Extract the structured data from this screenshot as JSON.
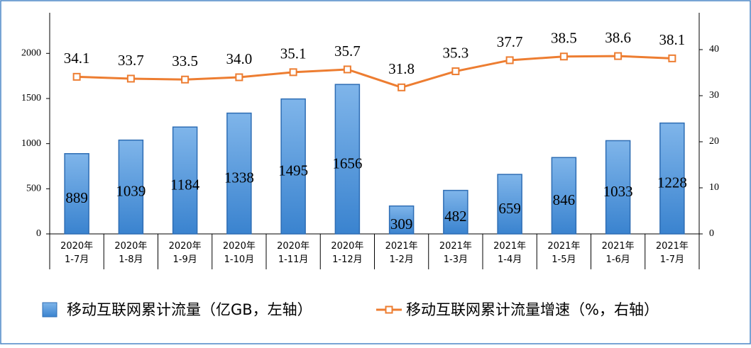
{
  "chart_data": {
    "type": "bar-line",
    "categories": [
      "2020年\n1-7月",
      "2020年\n1-8月",
      "2020年\n1-9月",
      "2020年\n1-10月",
      "2020年\n1-11月",
      "2020年\n1-12月",
      "2021年\n1-2月",
      "2021年\n1-3月",
      "2021年\n1-4月",
      "2021年\n1-5月",
      "2021年\n1-6月",
      "2021年\n1-7月"
    ],
    "series": [
      {
        "name": "移动互联网累计流量（亿GB，左轴）",
        "type": "bar",
        "color": "#5b9bd5",
        "values": [
          889,
          1039,
          1184,
          1338,
          1495,
          1656,
          309,
          482,
          659,
          846,
          1033,
          1228
        ]
      },
      {
        "name": "移动互联网累计流量增速（%，右轴）",
        "type": "line",
        "axis": "y2",
        "color": "#ed7d31",
        "values": [
          34.1,
          33.7,
          33.5,
          34.0,
          35.1,
          35.7,
          31.8,
          35.3,
          37.7,
          38.5,
          38.6,
          38.1
        ],
        "value_labels": [
          "34.1",
          "33.7",
          "33.5",
          "34.0",
          "35.1",
          "35.7",
          "31.8",
          "35.3",
          "37.7",
          "38.5",
          "38.6",
          "38.1"
        ]
      }
    ],
    "ylim": [
      0,
      2450
    ],
    "yticks": [
      0,
      500,
      1000,
      1500,
      2000
    ],
    "y2lim": [
      0,
      48
    ],
    "y2ticks": [
      0,
      10,
      20,
      30,
      40
    ]
  }
}
